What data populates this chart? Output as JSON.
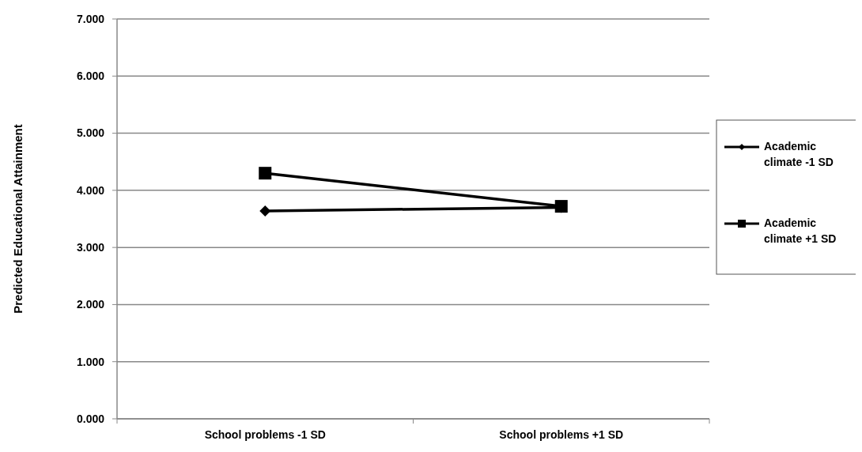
{
  "chart_data": {
    "type": "line",
    "ylabel": "Predicted Educational Attainment",
    "categories": [
      "School problems -1 SD",
      "School problems +1 SD"
    ],
    "series": [
      {
        "name": "Academic climate -1 SD",
        "color": "#000000",
        "values": [
          3.64,
          3.7
        ],
        "marker": "diamond"
      },
      {
        "name": "Academic climate +1 SD",
        "color": "#000000",
        "values": [
          4.3,
          3.72
        ],
        "marker": "square"
      }
    ],
    "ylim": [
      0,
      7
    ],
    "yticks": [
      {
        "value": 0,
        "label": "0.000"
      },
      {
        "value": 1,
        "label": "1.000"
      },
      {
        "value": 2,
        "label": "2.000"
      },
      {
        "value": 3,
        "label": "3.000"
      },
      {
        "value": 4,
        "label": "4.000"
      },
      {
        "value": 5,
        "label": "5.000"
      },
      {
        "value": 6,
        "label": "6.000"
      },
      {
        "value": 7,
        "label": "7.000"
      }
    ],
    "grid": "y",
    "legend": "right",
    "line_style": "solid"
  }
}
